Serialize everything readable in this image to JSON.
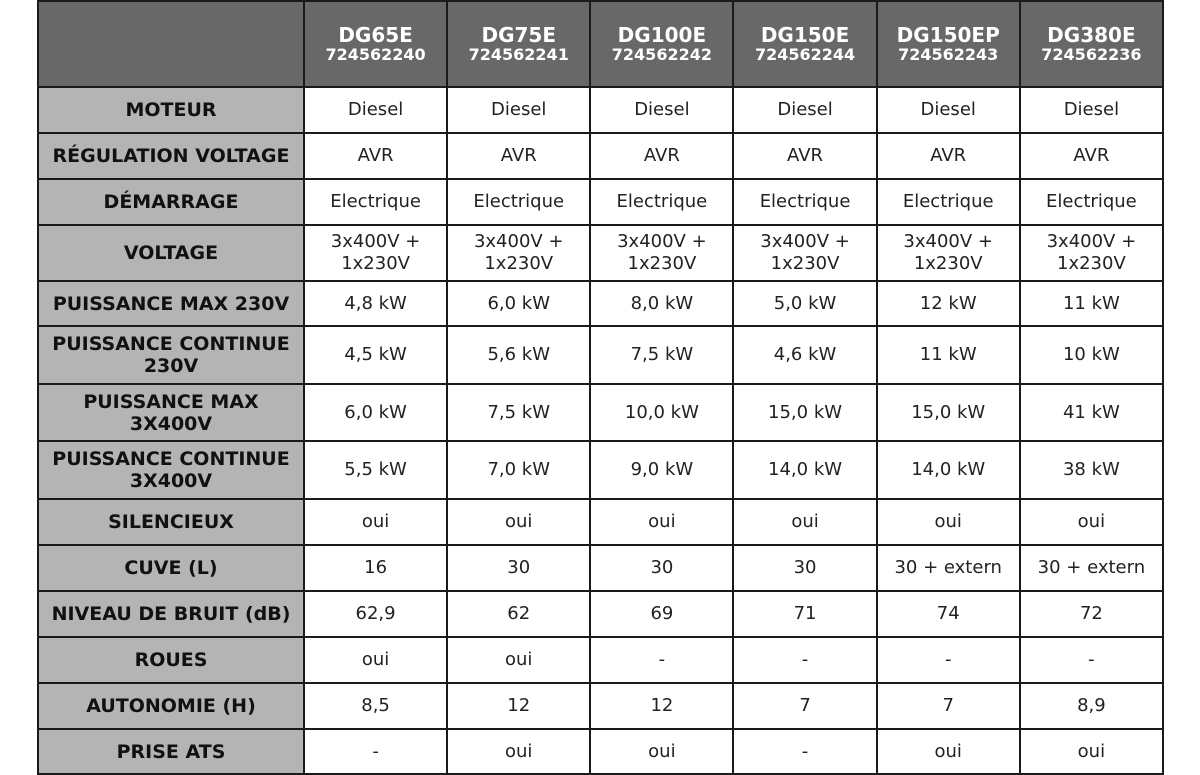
{
  "colors": {
    "header_bg": "#686868",
    "label_bg": "#b4b4b4",
    "border": "#1a1a1a"
  },
  "models": [
    {
      "name": "DG65E",
      "code": "724562240"
    },
    {
      "name": "DG75E",
      "code": "724562241"
    },
    {
      "name": "DG100E",
      "code": "724562242"
    },
    {
      "name": "DG150E",
      "code": "724562244"
    },
    {
      "name": "DG150EP",
      "code": "724562243"
    },
    {
      "name": "DG380E",
      "code": "724562236"
    }
  ],
  "rows": [
    {
      "label": "MOTEUR",
      "values": [
        "Diesel",
        "Diesel",
        "Diesel",
        "Diesel",
        "Diesel",
        "Diesel"
      ]
    },
    {
      "label": "RÉGULATION VOLTAGE",
      "values": [
        "AVR",
        "AVR",
        "AVR",
        "AVR",
        "AVR",
        "AVR"
      ]
    },
    {
      "label": "DÉMARRAGE",
      "values": [
        "Electrique",
        "Electrique",
        "Electrique",
        "Electrique",
        "Electrique",
        "Electrique"
      ]
    },
    {
      "label": "VOLTAGE",
      "values": [
        "3x400V + 1x230V",
        "3x400V + 1x230V",
        "3x400V + 1x230V",
        "3x400V + 1x230V",
        "3x400V + 1x230V",
        "3x400V + 1x230V"
      ]
    },
    {
      "label": "PUISSANCE MAX 230V",
      "values": [
        "4,8 kW",
        "6,0 kW",
        "8,0 kW",
        "5,0 kW",
        "12 kW",
        "11 kW"
      ]
    },
    {
      "label": "PUISSANCE CONTINUE 230V",
      "values": [
        "4,5 kW",
        "5,6 kW",
        "7,5 kW",
        "4,6 kW",
        "11 kW",
        "10 kW"
      ]
    },
    {
      "label": "PUISSANCE MAX 3X400V",
      "values": [
        "6,0 kW",
        "7,5 kW",
        "10,0 kW",
        "15,0 kW",
        "15,0 kW",
        "41 kW"
      ]
    },
    {
      "label": "PUISSANCE CONTINUE 3X400V",
      "values": [
        "5,5 kW",
        "7,0 kW",
        "9,0 kW",
        "14,0 kW",
        "14,0 kW",
        "38 kW"
      ]
    },
    {
      "label": "SILENCIEUX",
      "values": [
        "oui",
        "oui",
        "oui",
        "oui",
        "oui",
        "oui"
      ]
    },
    {
      "label": "CUVE (L)",
      "values": [
        "16",
        "30",
        "30",
        "30",
        "30 + extern",
        "30 + extern"
      ]
    },
    {
      "label": "NIVEAU DE BRUIT (dB)",
      "values": [
        "62,9",
        "62",
        "69",
        "71",
        "74",
        "72"
      ]
    },
    {
      "label": "ROUES",
      "values": [
        "oui",
        "oui",
        "-",
        "-",
        "-",
        "-"
      ]
    },
    {
      "label": "AUTONOMIE (H)",
      "values": [
        "8,5",
        "12",
        "12",
        "7",
        "7",
        "8,9"
      ]
    },
    {
      "label": "PRISE ATS",
      "values": [
        "-",
        "oui",
        "oui",
        "-",
        "oui",
        "oui"
      ]
    }
  ]
}
